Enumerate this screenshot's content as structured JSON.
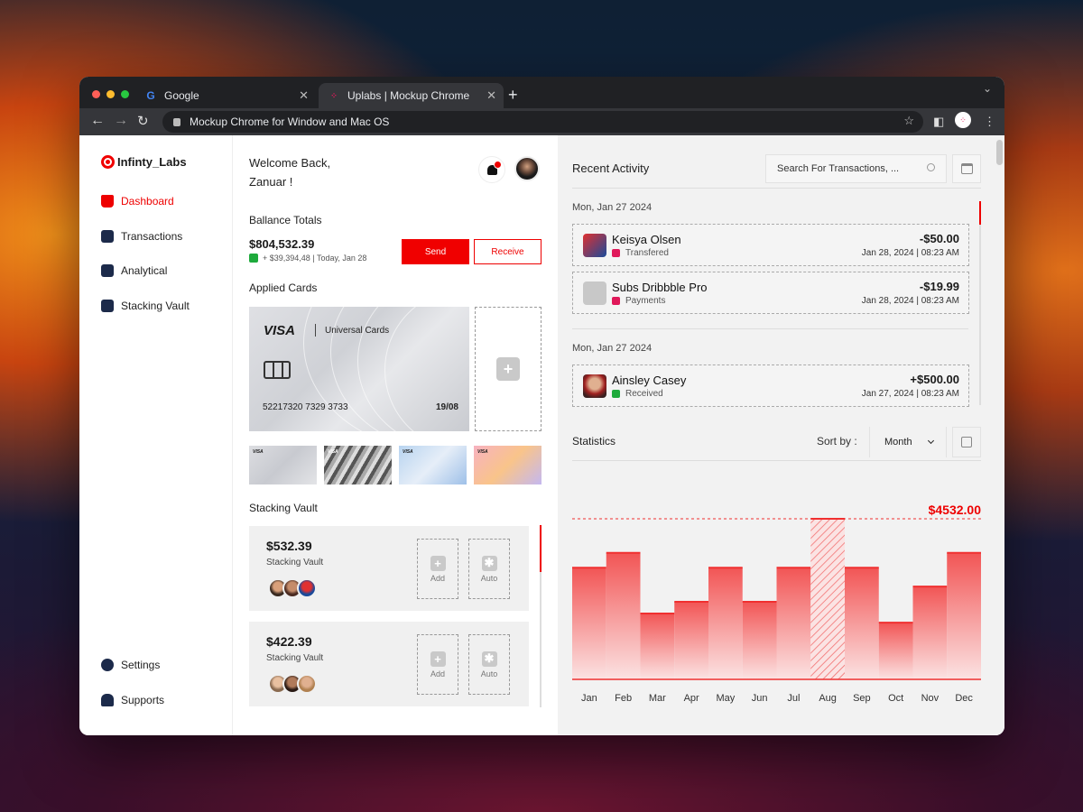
{
  "browser": {
    "tabs": [
      {
        "label": "Google",
        "icon": "google-icon"
      },
      {
        "label": "Uplabs | Mockup Chrome",
        "icon": "uplabs-icon"
      }
    ],
    "address": "Mockup Chrome for Window and Mac OS"
  },
  "app": {
    "logo": "Infinty_Labs",
    "accent": "#f00000",
    "nav": [
      {
        "label": "Dashboard",
        "icon": "home-icon",
        "active": true
      },
      {
        "label": "Transactions",
        "icon": "wallet-icon"
      },
      {
        "label": "Analytical",
        "icon": "analytics-icon"
      },
      {
        "label": "Stacking Vault",
        "icon": "vault-icon"
      }
    ],
    "nav_bottom": [
      {
        "label": "Settings",
        "icon": "gear-icon"
      },
      {
        "label": "Supports",
        "icon": "users-icon"
      }
    ]
  },
  "main": {
    "welcome_line1": "Welcome Back,",
    "welcome_line2": "Zanuar !",
    "balance_title": "Ballance Totals",
    "balance": "$804,532.39",
    "balance_delta": "+ $39,394,48 | Today, Jan 28",
    "send_label": "Send",
    "receive_label": "Receive",
    "cards_title": "Applied Cards",
    "card": {
      "brand": "VISA",
      "issuer": "Universal Cards",
      "number": "52217320 7329 3733",
      "expiry": "19/08"
    },
    "thumb_brand": "VISA",
    "vault_title": "Stacking Vault",
    "vaults": [
      {
        "amount": "$532.39",
        "label": "Stacking Vault",
        "add": "Add",
        "auto": "Auto"
      },
      {
        "amount": "$422.39",
        "label": "Stacking Vault",
        "add": "Add",
        "auto": "Auto"
      }
    ]
  },
  "activity": {
    "title": "Recent Activity",
    "search_placeholder": "Search For Transactions, ...",
    "groups": [
      {
        "date": "Mon, Jan 27 2024"
      },
      {
        "date": "Mon, Jan 27 2024"
      }
    ],
    "transactions": [
      {
        "name": "Keisya Olsen",
        "type": "Transfered",
        "amount": "-$50.00",
        "datetime": "Jan 28, 2024 | 08:23 AM",
        "type_color": "#e0195a"
      },
      {
        "name": "Subs Dribbble Pro",
        "type": "Payments",
        "amount": "-$19.99",
        "datetime": "Jan 28, 2024 | 08:23 AM",
        "type_color": "#e0195a"
      },
      {
        "name": "Ainsley Casey",
        "type": "Received",
        "amount": "+$500.00",
        "datetime": "Jan 27, 2024 | 08:23 AM",
        "type_color": "#1eaa3c"
      }
    ]
  },
  "statistics": {
    "title": "Statistics",
    "sort_label": "Sort by :",
    "sort_value": "Month"
  },
  "chart_data": {
    "type": "bar",
    "categories": [
      "Jan",
      "Feb",
      "Mar",
      "Apr",
      "May",
      "Jun",
      "Jul",
      "Aug",
      "Sep",
      "Oct",
      "Nov",
      "Dec"
    ],
    "values": [
      3150,
      3570,
      1860,
      2190,
      3150,
      2190,
      3150,
      4532,
      3150,
      1600,
      2620,
      3570
    ],
    "highlight_index": 7,
    "highlight_label": "$4532.00",
    "ylim": [
      0,
      4532
    ],
    "grid": false,
    "bar_color": "#f03030"
  }
}
